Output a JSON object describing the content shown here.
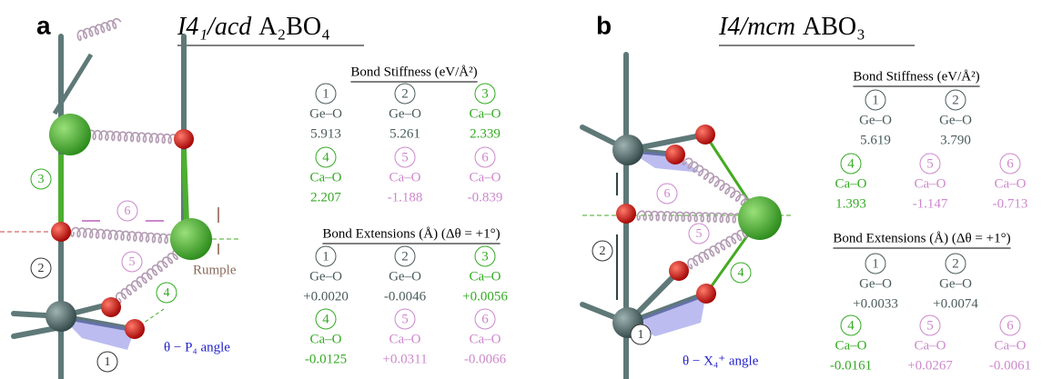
{
  "panels": [
    {
      "label": "a",
      "title": {
        "space_group": "I4₁/acd",
        "formula": "A₂BO₄"
      },
      "diagram": {
        "bond_labels": [
          "3",
          "2",
          "6",
          "5",
          "4",
          "1"
        ],
        "rumple": "Rumple",
        "angle": "θ − P₄ angle"
      },
      "stiffness": {
        "title": "Bond Stiffness (eV/Å²)",
        "rows": [
          [
            {
              "n": "1",
              "bond": "Ge–O",
              "value": "5.913",
              "color": "#4a5a5a"
            },
            {
              "n": "2",
              "bond": "Ge–O",
              "value": "5.261",
              "color": "#4a5a5a"
            },
            {
              "n": "3",
              "bond": "Ca–O",
              "value": "2.339",
              "color": "#33aa22"
            }
          ],
          [
            {
              "n": "4",
              "bond": "Ca–O",
              "value": "2.207",
              "color": "#33aa22"
            },
            {
              "n": "5",
              "bond": "Ca–O",
              "value": "-1.188",
              "color": "#cc88cc"
            },
            {
              "n": "6",
              "bond": "Ca–O",
              "value": "-0.839",
              "color": "#cc88cc"
            }
          ]
        ]
      },
      "extensions": {
        "title": "Bond Extensions (Å) (Δθ = +1°)",
        "rows": [
          [
            {
              "n": "1",
              "bond": "Ge–O",
              "value": "+0.0020",
              "color": "#4a5a5a"
            },
            {
              "n": "2",
              "bond": "Ge–O",
              "value": "-0.0046",
              "color": "#4a5a5a"
            },
            {
              "n": "3",
              "bond": "Ca–O",
              "value": "+0.0056",
              "color": "#33aa22"
            }
          ],
          [
            {
              "n": "4",
              "bond": "Ca–O",
              "value": "-0.0125",
              "color": "#33aa22"
            },
            {
              "n": "5",
              "bond": "Ca–O",
              "value": "+0.0311",
              "color": "#cc88cc"
            },
            {
              "n": "6",
              "bond": "Ca–O",
              "value": "-0.0066",
              "color": "#cc88cc"
            }
          ]
        ]
      }
    },
    {
      "label": "b",
      "title": {
        "space_group": "I4/mcm",
        "formula": "ABO₃"
      },
      "diagram": {
        "bond_labels": [
          "6",
          "2",
          "5",
          "4",
          "1"
        ],
        "angle": "θ − X₄⁺ angle"
      },
      "stiffness": {
        "title": "Bond Stiffness (eV/Å²)",
        "rows": [
          [
            {
              "n": "1",
              "bond": "Ge–O",
              "value": "5.619",
              "color": "#4a5a5a"
            },
            {
              "n": "2",
              "bond": "Ge–O",
              "value": "3.790",
              "color": "#4a5a5a"
            }
          ],
          [
            {
              "n": "4",
              "bond": "Ca–O",
              "value": "1.393",
              "color": "#33aa22"
            },
            {
              "n": "5",
              "bond": "Ca–O",
              "value": "-1.147",
              "color": "#cc88cc"
            },
            {
              "n": "6",
              "bond": "Ca–O",
              "value": "-0.713",
              "color": "#cc88cc"
            }
          ]
        ]
      },
      "extensions": {
        "title": "Bond Extensions (Å) (Δθ = +1°)",
        "rows": [
          [
            {
              "n": "1",
              "bond": "Ge–O",
              "value": "+0.0033",
              "color": "#4a5a5a"
            },
            {
              "n": "2",
              "bond": "Ge–O",
              "value": "+0.0074",
              "color": "#4a5a5a"
            }
          ],
          [
            {
              "n": "4",
              "bond": "Ca–O",
              "value": "-0.0161",
              "color": "#33aa22"
            },
            {
              "n": "5",
              "bond": "Ca–O",
              "value": "+0.0267",
              "color": "#cc88cc"
            },
            {
              "n": "6",
              "bond": "Ca–O",
              "value": "-0.0061",
              "color": "#cc88cc"
            }
          ]
        ]
      }
    }
  ]
}
